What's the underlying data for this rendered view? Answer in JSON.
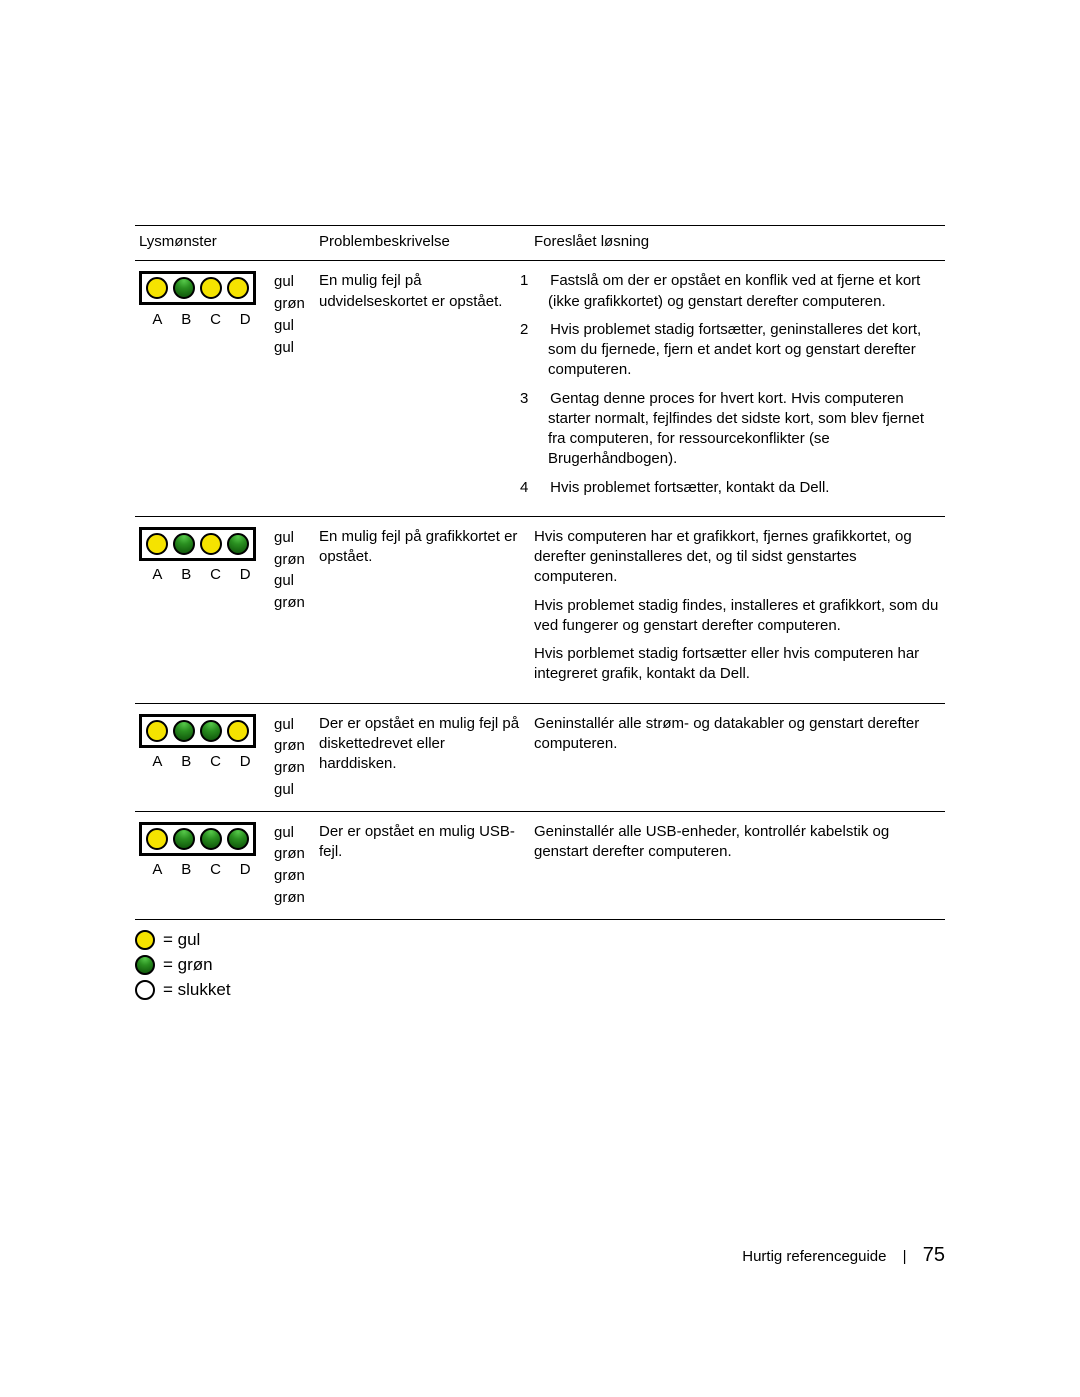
{
  "colors": {
    "yellow": "#f5e300",
    "green_light": "#56c84a",
    "green_dark": "#0b4d07",
    "off": "#ffffff",
    "border": "#000000",
    "text": "#000000",
    "background": "#ffffff"
  },
  "table": {
    "headers": {
      "pattern": "Lysmønster",
      "problem": "Problembeskrivelse",
      "solution": "Foreslået løsning"
    },
    "abcd": [
      "A",
      "B",
      "C",
      "D"
    ],
    "rows": [
      {
        "leds": [
          "yellow",
          "green",
          "yellow",
          "yellow"
        ],
        "color_labels": [
          "gul",
          "grøn",
          "gul",
          "gul"
        ],
        "problem": "En mulig fejl på udvidelseskortet er opstået.",
        "solution_type": "ordered",
        "solution_items": [
          "Fastslå om der er opstået en konflik ved at fjerne et kort (ikke grafikkortet) og genstart derefter computeren.",
          "Hvis problemet stadig fortsætter, geninstalleres det kort, som du fjernede, fjern et andet kort og genstart derefter computeren.",
          "Gentag denne proces for hvert kort. Hvis computeren starter normalt, fejlfindes det sidste kort, som blev fjernet fra computeren, for ressourcekonflikter (se Brugerhåndbogen).",
          "Hvis problemet fortsætter, kontakt da Dell."
        ]
      },
      {
        "leds": [
          "yellow",
          "green",
          "yellow",
          "green"
        ],
        "color_labels": [
          "gul",
          "grøn",
          "gul",
          "grøn"
        ],
        "problem": "En mulig fejl på grafikkortet er opstået.",
        "solution_type": "paragraphs",
        "solution_items": [
          "Hvis computeren har et grafikkort, fjernes grafikkortet, og derefter geninstalleres det, og til sidst genstartes computeren.",
          "Hvis problemet stadig findes, installeres et grafikkort, som du ved fungerer og genstart derefter computeren.",
          "Hvis porblemet stadig fortsætter eller hvis computeren har integreret grafik, kontakt da Dell."
        ]
      },
      {
        "leds": [
          "yellow",
          "green",
          "green",
          "yellow"
        ],
        "color_labels": [
          "gul",
          "grøn",
          "grøn",
          "gul"
        ],
        "problem": "Der er opstået en mulig fejl på diskettedrevet eller harddisken.",
        "solution_type": "paragraphs",
        "solution_items": [
          "Geninstallér alle strøm- og datakabler og genstart derefter computeren."
        ]
      },
      {
        "leds": [
          "yellow",
          "green",
          "green",
          "green"
        ],
        "color_labels": [
          "gul",
          "grøn",
          "grøn",
          "grøn"
        ],
        "problem": "Der er opstået en mulig USB-fejl.",
        "solution_type": "paragraphs",
        "solution_items": [
          "Geninstallér alle USB-enheder, kontrollér kabelstik og genstart derefter computeren."
        ]
      }
    ]
  },
  "legend": [
    {
      "led": "yellow",
      "label": "= gul"
    },
    {
      "led": "green",
      "label": "= grøn"
    },
    {
      "led": "off",
      "label": "= slukket"
    }
  ],
  "footer": {
    "title": "Hurtig referenceguide",
    "page": "75"
  }
}
